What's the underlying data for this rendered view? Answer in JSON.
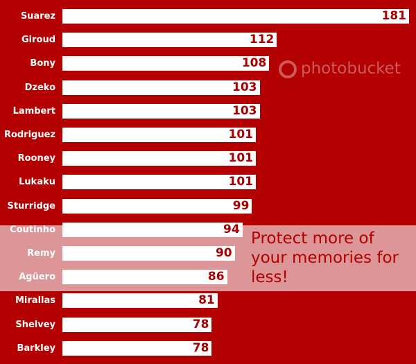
{
  "chart_data": {
    "type": "bar",
    "orientation": "horizontal",
    "categories": [
      "Suarez",
      "Giroud",
      "Bony",
      "Dzeko",
      "Lambert",
      "Rodriguez",
      "Rooney",
      "Lukaku",
      "Sturridge",
      "Coutinho",
      "Remy",
      "Agüero",
      "Mirallas",
      "Shelvey",
      "Barkley"
    ],
    "values": [
      181,
      112,
      108,
      103,
      103,
      101,
      101,
      101,
      99,
      94,
      90,
      86,
      81,
      78,
      78
    ],
    "xlim": [
      0,
      181
    ],
    "grid": false,
    "colors": {
      "background": "#b30000",
      "bar": "#ffffff",
      "value_text": "#a80000",
      "label_text": "#ffffff"
    }
  },
  "watermark": {
    "logo": "photobucket",
    "banner": "Protect more of your memories for less!"
  }
}
